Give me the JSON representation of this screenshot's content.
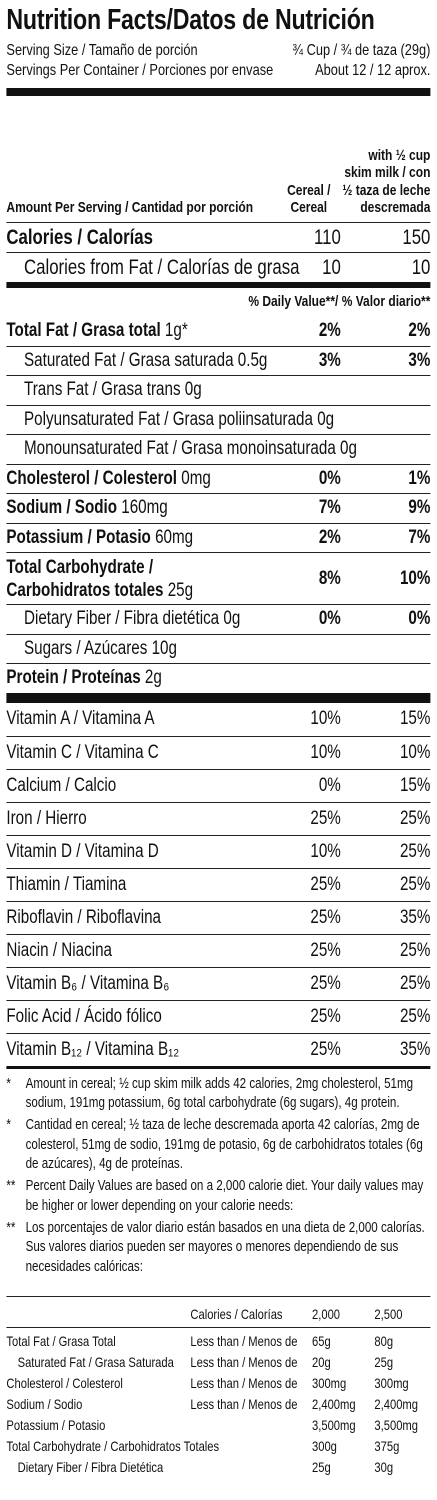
{
  "header": {
    "title": "Nutrition Facts/Datos de Nutrición",
    "serving_size_label": "Serving Size / Tamaño de porción",
    "serving_size": "¾ Cup / ¾ de taza (29g)",
    "servings_label": "Servings Per Container / Porciones por envase",
    "servings": "About 12 / 12 aprox."
  },
  "columns": {
    "amount_label": "Amount Per Serving / Cantidad por porción",
    "cereal": "Cereal / Cereal",
    "with_milk": "with ½ cup skim milk / con ½ taza de leche descremada"
  },
  "calories": {
    "label": "Calories / Calorías",
    "cereal": 110,
    "with_milk": 150
  },
  "calories_from_fat": {
    "label": "Calories from Fat / Calorías de grasa",
    "cereal": 10,
    "with_milk": 10
  },
  "daily_value_header": "% Daily Value**/ % Valor diario**",
  "nutrients": [
    {
      "name": "Total Fat / Grasa total",
      "amount": "1g*",
      "cereal": "2%",
      "with_milk": "2%"
    },
    {
      "name": "Saturated Fat / Grasa saturada",
      "amount": "0.5g",
      "cereal": "3%",
      "with_milk": "3%"
    },
    {
      "name": "Trans Fat / Grasa trans",
      "amount": "0g"
    },
    {
      "name": "Polyunsaturated Fat / Grasa poliinsaturada",
      "amount": "0g"
    },
    {
      "name": "Monounsaturated Fat / Grasa monoinsaturada",
      "amount": "0g"
    },
    {
      "name": "Cholesterol / Colesterol",
      "amount": "0mg",
      "cereal": "0%",
      "with_milk": "1%"
    },
    {
      "name": "Sodium / Sodio",
      "amount": "160mg",
      "cereal": "7%",
      "with_milk": "9%"
    },
    {
      "name": "Potassium / Potasio",
      "amount": "60mg",
      "cereal": "2%",
      "with_milk": "7%"
    },
    {
      "name": "Total Carbohydrate / Carbohidratos totales",
      "amount": "25g",
      "cereal": "8%",
      "with_milk": "10%"
    },
    {
      "name": "Dietary Fiber / Fibra dietética",
      "amount": "0g",
      "cereal": "0%",
      "with_milk": "0%"
    },
    {
      "name": "Sugars / Azúcares",
      "amount": "10g"
    },
    {
      "name": "Protein / Proteínas",
      "amount": "2g"
    }
  ],
  "vitamins": [
    {
      "name": "Vitamin A / Vitamina A",
      "cereal": "10%",
      "with_milk": "15%"
    },
    {
      "name": "Vitamin C / Vitamina C",
      "cereal": "10%",
      "with_milk": "10%"
    },
    {
      "name": "Calcium / Calcio",
      "cereal": "0%",
      "with_milk": "15%"
    },
    {
      "name": "Iron / Hierro",
      "cereal": "25%",
      "with_milk": "25%"
    },
    {
      "name": "Vitamin D / Vitamina D",
      "cereal": "10%",
      "with_milk": "25%"
    },
    {
      "name": "Thiamin / Tiamina",
      "cereal": "25%",
      "with_milk": "25%"
    },
    {
      "name": "Riboflavin / Riboflavina",
      "cereal": "25%",
      "with_milk": "35%"
    },
    {
      "name": "Niacin / Niacina",
      "cereal": "25%",
      "with_milk": "25%"
    },
    {
      "name": "Vitamin B₆ / Vitamina B₆",
      "cereal": "25%",
      "with_milk": "25%"
    },
    {
      "name": "Folic Acid / Ácido fólico",
      "cereal": "25%",
      "with_milk": "25%"
    },
    {
      "name": "Vitamin B₁₂ / Vitamina B₁₂",
      "cereal": "25%",
      "with_milk": "35%"
    }
  ],
  "footnotes": [
    {
      "mark": "*",
      "text": "Amount in cereal; ½ cup skim milk adds 42 calories, 2mg cholesterol, 51mg sodium, 191mg potassium, 6g total carbohydrate (6g sugars), 4g protein."
    },
    {
      "mark": "*",
      "text": "Cantidad en cereal; ½ taza de leche descremada aporta 42 calorías, 2mg de colesterol, 51mg de sodio, 191mg de potasio, 6g de carbohidratos totales (6g de azúcares), 4g de proteínas."
    },
    {
      "mark": "**",
      "text": "Percent Daily Values are based on a 2,000 calorie diet. Your daily values may be higher or lower depending on your calorie needs:"
    },
    {
      "mark": "**",
      "text": "Los porcentajes de valor diario están basados en una dieta de 2,000 calorías. Sus valores diarios pueden ser mayores o menores dependiendo de sus necesidades calóricas:"
    }
  ],
  "daily_values_table": {
    "header": {
      "label": "Calories / Calorías",
      "col_2000": "2,000",
      "col_2500": "2,500"
    },
    "rows": [
      {
        "name": "Total Fat / Grasa Total",
        "qualifier": "Less than / Menos de",
        "col_2000": "65g",
        "col_2500": "80g"
      },
      {
        "name": "Saturated Fat / Grasa Saturada",
        "qualifier": "Less than / Menos de",
        "col_2000": "20g",
        "col_2500": "25g"
      },
      {
        "name": "Cholesterol / Colesterol",
        "qualifier": "Less than / Menos de",
        "col_2000": "300mg",
        "col_2500": "300mg"
      },
      {
        "name": "Sodium / Sodio",
        "qualifier": "Less than / Menos de",
        "col_2000": "2,400mg",
        "col_2500": "2,400mg"
      },
      {
        "name": "Potassium / Potasio",
        "col_2000": "3,500mg",
        "col_2500": "3,500mg"
      },
      {
        "name": "Total Carbohydrate / Carbohidratos Totales",
        "col_2000": "300g",
        "col_2500": "375g"
      },
      {
        "name": "Dietary Fiber / Fibra Dietética",
        "col_2000": "25g",
        "col_2500": "30g"
      }
    ]
  }
}
